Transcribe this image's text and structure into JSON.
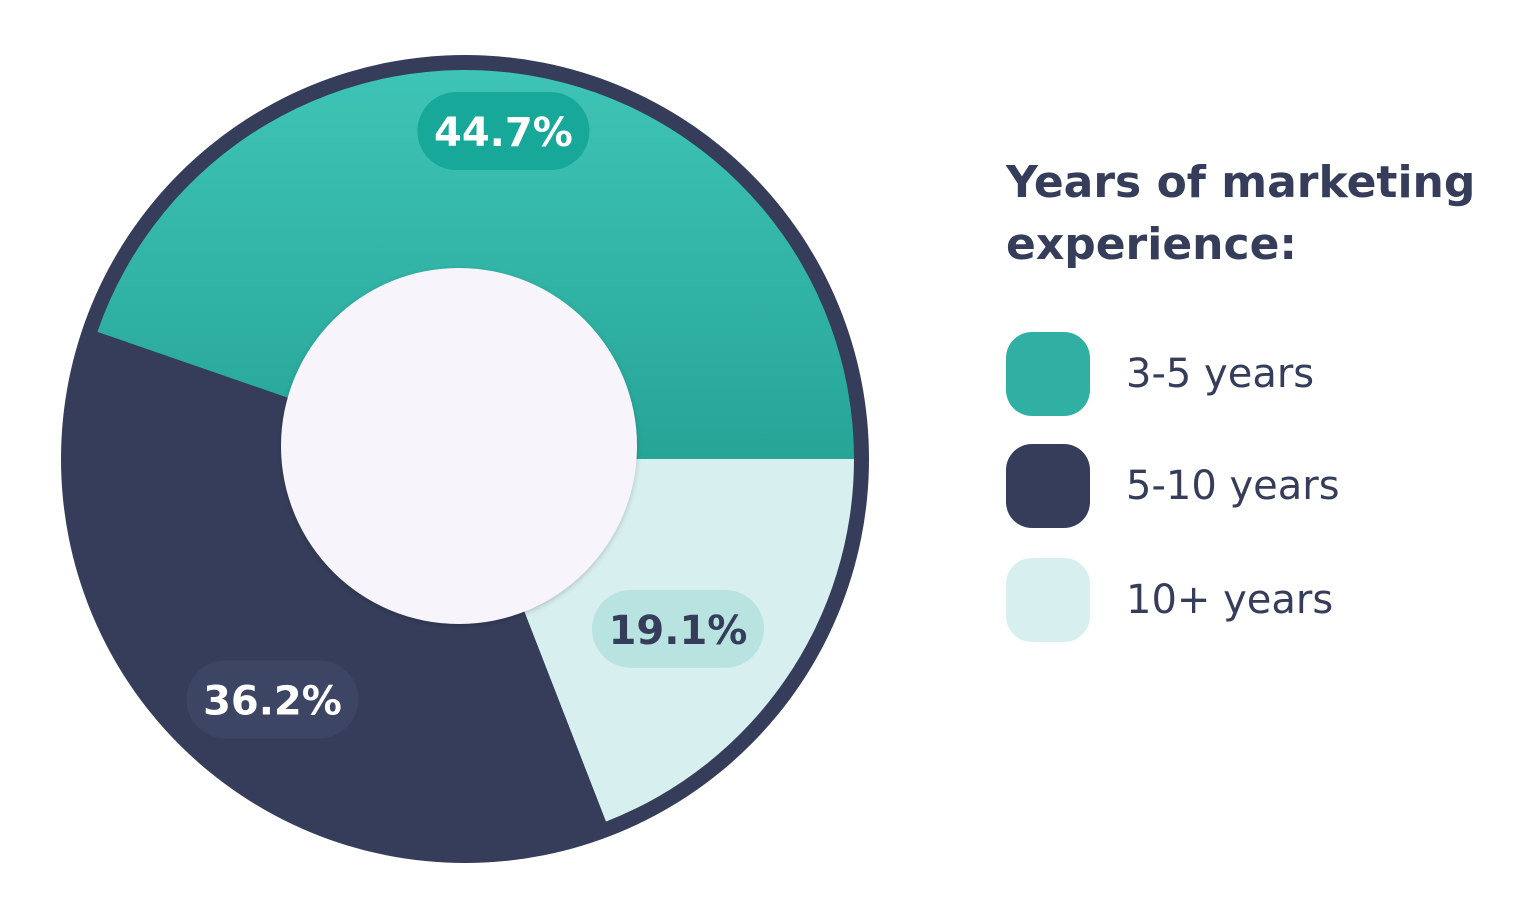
{
  "chart_data": {
    "type": "pie",
    "title": "Years of marketing experience:",
    "categories": [
      "3-5 years",
      "5-10 years",
      "10+ years"
    ],
    "values": [
      44.7,
      36.2,
      19.1
    ],
    "value_labels": [
      "44.7%",
      "36.2%",
      "19.1%"
    ],
    "colors": [
      "#2fb0a3",
      "#353d5a",
      "#d7f0ef"
    ],
    "label_pill_colors": [
      "#17a899",
      "#3c4563",
      "#b9e3e0"
    ],
    "label_text_colors": [
      "#ffffff",
      "#ffffff",
      "#353d5a"
    ],
    "legend_position": "right",
    "donut": true
  }
}
